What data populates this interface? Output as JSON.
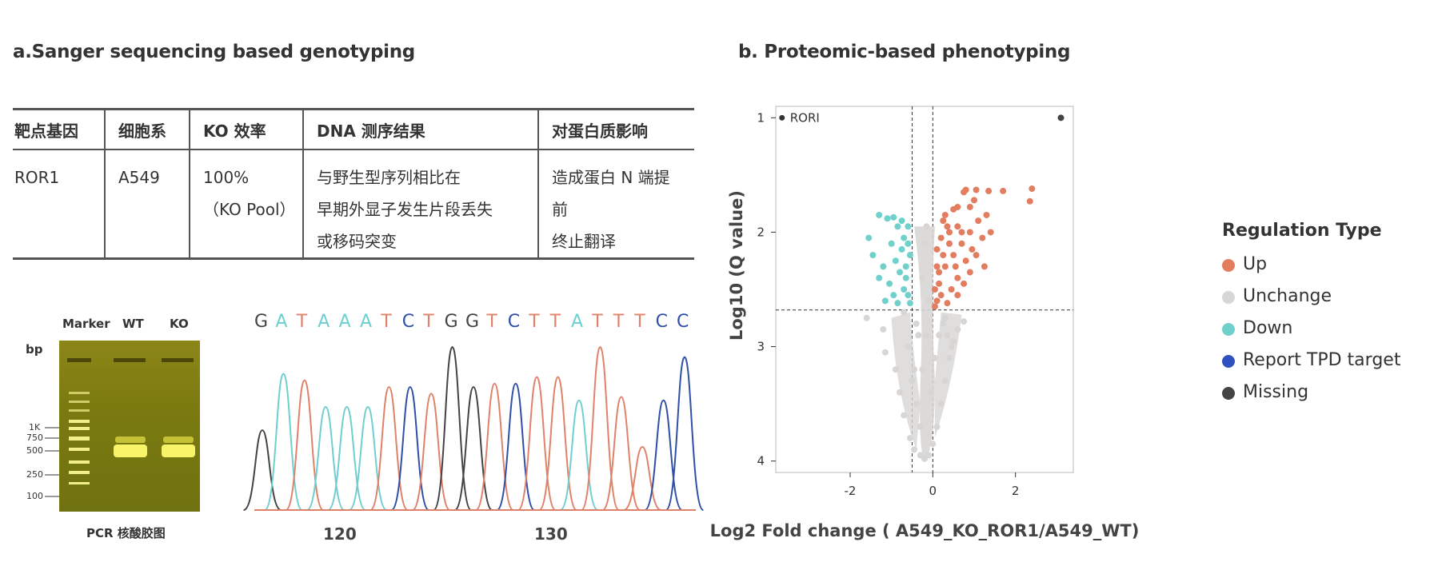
{
  "panel_a": {
    "title": "a.Sanger sequencing based genotyping",
    "table": {
      "headers": [
        "靶点基因",
        "细胞系",
        "KO 效率",
        "DNA 测序结果",
        "对蛋白质影响"
      ],
      "row": {
        "gene": "ROR1",
        "cell_line": "A549",
        "ko_efficiency_line1": "100%",
        "ko_efficiency_line2": "（KO Pool）",
        "dna_result_line1": "与野生型序列相比在",
        "dna_result_line2": "早期外显子发生片段丢失",
        "dna_result_line3": "或移码突变",
        "protein_effect_line1": "造成蛋白 N 端提前",
        "protein_effect_line2": "终止翻译"
      }
    },
    "gel": {
      "lanes": [
        "Marker",
        "WT",
        "KO"
      ],
      "unit": "bp",
      "ladder": [
        "1K",
        "750",
        "500",
        "250",
        "100"
      ],
      "caption": "PCR 核酸胶图"
    },
    "chromatogram": {
      "sequence": [
        "G",
        "A",
        "T",
        "A",
        "A",
        "A",
        "T",
        "C",
        "T",
        "G",
        "G",
        "T",
        "C",
        "T",
        "T",
        "A",
        "T",
        "T",
        "T",
        "C",
        "C"
      ],
      "base_colors": {
        "A": "#6fcfd0",
        "T": "#e0826a",
        "C": "#2f4fa8",
        "G": "#444444"
      },
      "positions": [
        "120",
        "130"
      ]
    }
  },
  "panel_b": {
    "title": "b. Proteomic-based phenotyping",
    "chart_data": {
      "type": "scatter",
      "title": "",
      "xlabel": "Log2 Fold change ( A549_KO_ROR1/A549_WT)",
      "ylabel": "Log10 (Q value)",
      "xlim": [
        -3.8,
        3.4
      ],
      "ylim": [
        0.9,
        4.1
      ],
      "x_ticks": [
        "-2",
        "0",
        "2"
      ],
      "x_tick_values": [
        -2,
        0,
        2
      ],
      "y_ticks": [
        "1",
        "2",
        "3",
        "4"
      ],
      "y_tick_values": [
        1,
        2,
        3,
        4
      ],
      "y_inverted": true,
      "threshold_lines": {
        "x": [
          -0.5,
          0
        ],
        "y": 2.68
      },
      "annotation": "RORI",
      "annotated_point": {
        "x": -3.65,
        "y": 1.0
      },
      "colors": {
        "Up": "#e27d5f",
        "Unchange": "#d8d6d4",
        "Down": "#6fd0cc",
        "Report TPD target": "#3050c0",
        "Missing": "#444444"
      },
      "series": [
        {
          "name": "Up",
          "points": [
            [
              2.4,
              1.62
            ],
            [
              2.35,
              1.73
            ],
            [
              1.7,
              1.64
            ],
            [
              1.35,
              1.64
            ],
            [
              1.05,
              1.63
            ],
            [
              0.8,
              1.63
            ],
            [
              0.75,
              1.65
            ],
            [
              1.0,
              1.72
            ],
            [
              0.9,
              1.78
            ],
            [
              1.3,
              1.85
            ],
            [
              1.1,
              1.9
            ],
            [
              0.6,
              1.78
            ],
            [
              0.5,
              1.8
            ],
            [
              0.3,
              1.85
            ],
            [
              0.25,
              1.9
            ],
            [
              0.6,
              1.95
            ],
            [
              0.9,
              2.0
            ],
            [
              1.2,
              2.05
            ],
            [
              0.4,
              2.0
            ],
            [
              0.2,
              2.05
            ],
            [
              0.1,
              2.15
            ],
            [
              0.7,
              2.1
            ],
            [
              1.05,
              2.2
            ],
            [
              0.8,
              2.25
            ],
            [
              0.5,
              2.2
            ],
            [
              0.3,
              2.3
            ],
            [
              0.15,
              2.35
            ],
            [
              0.6,
              2.4
            ],
            [
              0.9,
              2.35
            ],
            [
              0.45,
              2.5
            ],
            [
              0.2,
              2.55
            ],
            [
              0.1,
              2.6
            ],
            [
              0.35,
              2.62
            ],
            [
              0.15,
              2.45
            ],
            [
              0.6,
              2.55
            ],
            [
              0.75,
              2.45
            ],
            [
              1.25,
              2.3
            ],
            [
              0.4,
              2.1
            ],
            [
              0.55,
              2.3
            ],
            [
              0.05,
              2.5
            ],
            [
              0.25,
              2.2
            ],
            [
              0.95,
              2.15
            ],
            [
              1.4,
              2.0
            ],
            [
              0.7,
              2.0
            ],
            [
              0.35,
              1.95
            ],
            [
              0.1,
              2.3
            ],
            [
              0.05,
              2.65
            ]
          ]
        },
        {
          "name": "Down",
          "points": [
            [
              -1.55,
              2.05
            ],
            [
              -1.45,
              2.2
            ],
            [
              -1.3,
              1.85
            ],
            [
              -1.1,
              1.88
            ],
            [
              -0.95,
              1.87
            ],
            [
              -0.85,
              1.95
            ],
            [
              -0.75,
              1.9
            ],
            [
              -0.7,
              2.05
            ],
            [
              -0.6,
              1.95
            ],
            [
              -1.0,
              2.1
            ],
            [
              -1.2,
              2.3
            ],
            [
              -0.9,
              2.25
            ],
            [
              -0.8,
              2.35
            ],
            [
              -0.65,
              2.3
            ],
            [
              -0.55,
              2.2
            ],
            [
              -1.05,
              2.45
            ],
            [
              -0.95,
              2.55
            ],
            [
              -1.15,
              2.6
            ],
            [
              -0.7,
              2.5
            ],
            [
              -0.6,
              2.55
            ],
            [
              -0.85,
              2.62
            ],
            [
              -0.55,
              2.62
            ],
            [
              -0.75,
              2.15
            ],
            [
              -1.3,
              2.4
            ],
            [
              -0.65,
              2.4
            ],
            [
              -0.6,
              2.1
            ]
          ]
        },
        {
          "name": "Unchange",
          "points": [
            [
              -1.6,
              2.75
            ],
            [
              -1.2,
              2.85
            ],
            [
              -1.15,
              3.05
            ],
            [
              -0.9,
              3.2
            ],
            [
              -0.8,
              3.4
            ],
            [
              -0.7,
              3.6
            ],
            [
              -0.55,
              3.8
            ],
            [
              -0.45,
              3.9
            ],
            [
              -0.3,
              3.95
            ],
            [
              -0.2,
              3.98
            ],
            [
              -0.1,
              3.95
            ],
            [
              0.0,
              3.85
            ],
            [
              0.1,
              3.7
            ],
            [
              0.2,
              3.5
            ],
            [
              0.3,
              3.3
            ],
            [
              0.4,
              3.1
            ],
            [
              0.5,
              2.95
            ],
            [
              0.6,
              2.85
            ],
            [
              0.75,
              2.78
            ],
            [
              0.3,
              2.75
            ],
            [
              -0.4,
              2.8
            ],
            [
              -0.6,
              3.0
            ],
            [
              -0.5,
              3.3
            ],
            [
              -0.4,
              3.5
            ],
            [
              -0.3,
              3.7
            ],
            [
              -0.25,
              3.2
            ],
            [
              -0.15,
              2.9
            ],
            [
              -0.05,
              3.4
            ],
            [
              0.05,
              3.1
            ],
            [
              0.15,
              2.9
            ],
            [
              0.25,
              2.8
            ],
            [
              -0.7,
              2.7
            ],
            [
              -0.25,
              2.4
            ],
            [
              -0.2,
              2.1
            ],
            [
              -0.15,
              1.95
            ],
            [
              -0.1,
              2.6
            ],
            [
              -0.35,
              2.9
            ],
            [
              0.35,
              2.9
            ],
            [
              -0.45,
              3.2
            ],
            [
              0.45,
              3.0
            ]
          ]
        },
        {
          "name": "Missing",
          "points": [
            [
              3.1,
              1.0
            ]
          ]
        }
      ],
      "legend": {
        "title": "Regulation Type",
        "position": "right",
        "entries": [
          "Up",
          "Unchange",
          "Down",
          "Report TPD target",
          "Missing"
        ]
      }
    }
  }
}
